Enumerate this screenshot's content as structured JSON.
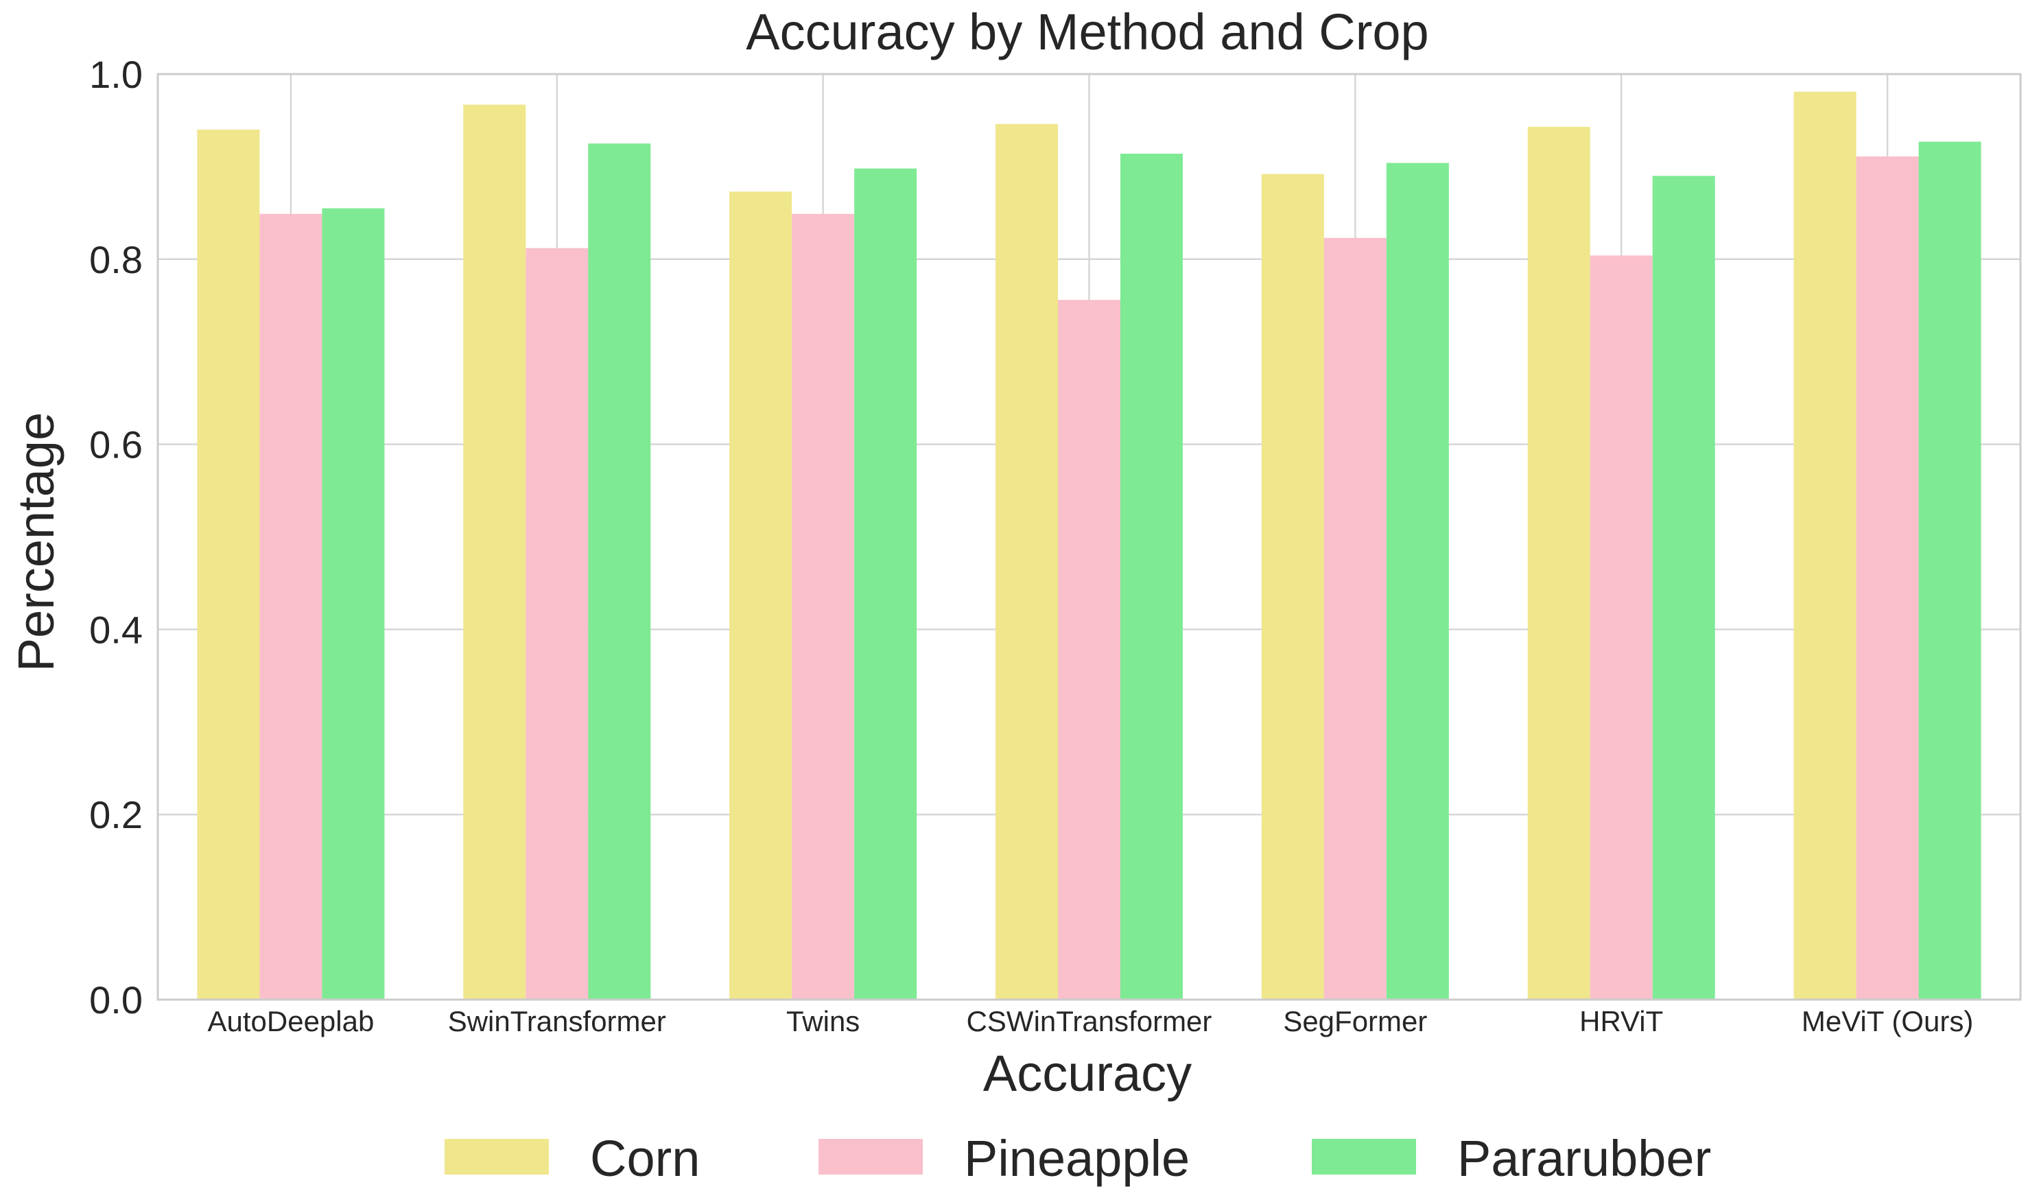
{
  "chart_data": {
    "type": "bar",
    "title": "Accuracy by Method and Crop",
    "xlabel": "Accuracy",
    "ylabel": "Percentage",
    "ylim": [
      0,
      1.0
    ],
    "yticks": [
      0.0,
      0.2,
      0.4,
      0.6,
      0.8,
      1.0
    ],
    "ytick_labels": [
      "0.0",
      "0.2",
      "0.4",
      "0.6",
      "0.8",
      "1.0"
    ],
    "grid": true,
    "legend_position": "bottom-center",
    "categories": [
      "AutoDeeplab",
      "SwinTransformer",
      "Twins",
      "CSWinTransformer",
      "SegFormer",
      "HRViT",
      "MeViT (Ours)"
    ],
    "series": [
      {
        "name": "Corn",
        "color": "#f0e68c",
        "values": [
          0.94,
          0.967,
          0.873,
          0.946,
          0.892,
          0.943,
          0.981
        ]
      },
      {
        "name": "Pineapple",
        "color": "#f9bfcb",
        "values": [
          0.849,
          0.812,
          0.849,
          0.756,
          0.823,
          0.804,
          0.911
        ]
      },
      {
        "name": "Pararubber",
        "color": "#7eea94",
        "values": [
          0.855,
          0.925,
          0.898,
          0.914,
          0.904,
          0.89,
          0.927
        ]
      }
    ]
  }
}
